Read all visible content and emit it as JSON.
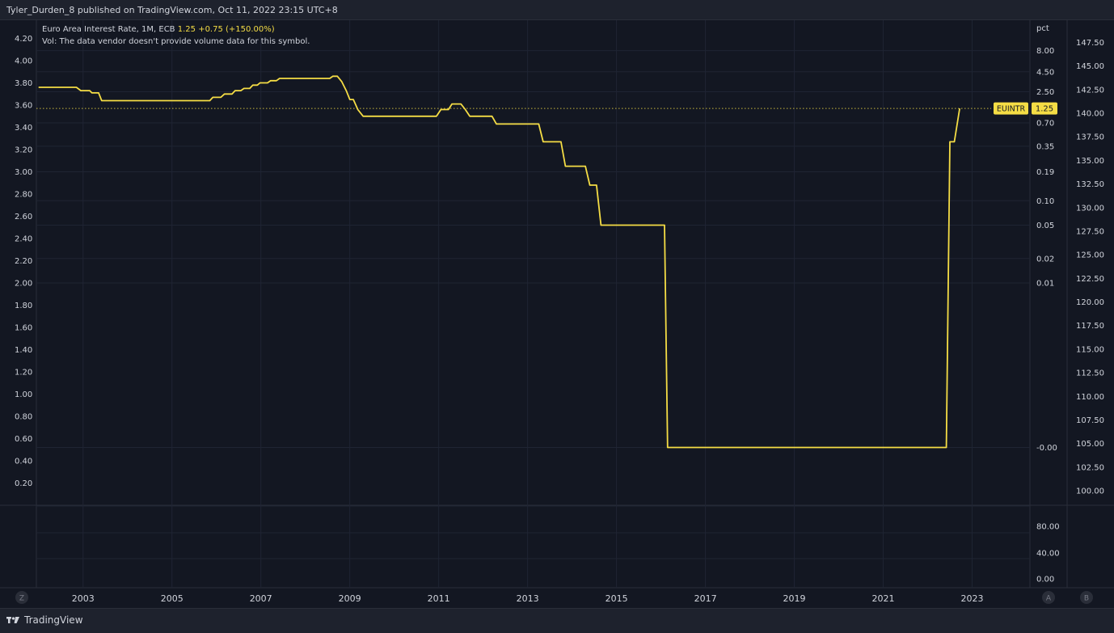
{
  "header": {
    "publish_text": "Tyler_Durden_8 published on TradingView.com, Oct 11, 2022 23:15 UTC+8"
  },
  "legend": {
    "series_label": "Euro Area Interest Rate, 1M, ECB",
    "last_value": "1.25",
    "change": "+0.75 (+150.00%)",
    "vol_note": "Vol: The data vendor doesn't provide volume data for this symbol."
  },
  "footer": {
    "brand": "TradingView"
  },
  "buttons": {
    "z": "Z",
    "a": "A",
    "b": "B"
  },
  "colors": {
    "line": "#f5dd45",
    "background": "#131722",
    "grid": "#1f2433",
    "text": "#d1d4dc"
  },
  "chart_data": {
    "type": "line",
    "series": [
      {
        "name": "EUINTR",
        "last_label": "1.25",
        "points": [
          [
            2002.0,
            3.76
          ],
          [
            2002.85,
            3.76
          ],
          [
            2002.95,
            3.73
          ],
          [
            2003.15,
            3.73
          ],
          [
            2003.2,
            3.71
          ],
          [
            2003.35,
            3.71
          ],
          [
            2003.42,
            3.64
          ],
          [
            2005.85,
            3.64
          ],
          [
            2005.92,
            3.67
          ],
          [
            2006.1,
            3.67
          ],
          [
            2006.18,
            3.7
          ],
          [
            2006.35,
            3.7
          ],
          [
            2006.42,
            3.73
          ],
          [
            2006.55,
            3.73
          ],
          [
            2006.62,
            3.75
          ],
          [
            2006.75,
            3.75
          ],
          [
            2006.82,
            3.78
          ],
          [
            2006.92,
            3.78
          ],
          [
            2006.98,
            3.8
          ],
          [
            2007.15,
            3.8
          ],
          [
            2007.22,
            3.82
          ],
          [
            2007.35,
            3.82
          ],
          [
            2007.42,
            3.84
          ],
          [
            2008.55,
            3.84
          ],
          [
            2008.62,
            3.86
          ],
          [
            2008.72,
            3.86
          ],
          [
            2008.82,
            3.81
          ],
          [
            2008.92,
            3.73
          ],
          [
            2009.0,
            3.65
          ],
          [
            2009.08,
            3.65
          ],
          [
            2009.18,
            3.56
          ],
          [
            2009.3,
            3.5
          ],
          [
            2010.95,
            3.5
          ],
          [
            2011.05,
            3.56
          ],
          [
            2011.22,
            3.56
          ],
          [
            2011.3,
            3.61
          ],
          [
            2011.5,
            3.61
          ],
          [
            2011.6,
            3.56
          ],
          [
            2011.7,
            3.5
          ],
          [
            2012.2,
            3.5
          ],
          [
            2012.3,
            3.43
          ],
          [
            2013.25,
            3.43
          ],
          [
            2013.35,
            3.27
          ],
          [
            2013.75,
            3.27
          ],
          [
            2013.85,
            3.05
          ],
          [
            2014.3,
            3.05
          ],
          [
            2014.4,
            2.88
          ],
          [
            2014.55,
            2.88
          ],
          [
            2014.65,
            2.52
          ],
          [
            2016.08,
            2.52
          ],
          [
            2016.15,
            0.52
          ],
          [
            2022.42,
            0.52
          ],
          [
            2022.5,
            3.27
          ],
          [
            2022.6,
            3.27
          ],
          [
            2022.72,
            3.57
          ]
        ]
      }
    ],
    "x_ticks": [
      "2003",
      "2005",
      "2007",
      "2009",
      "2011",
      "2013",
      "2015",
      "2017",
      "2019",
      "2021",
      "2023"
    ],
    "x_tick_values": [
      2003,
      2005,
      2007,
      2009,
      2011,
      2013,
      2015,
      2017,
      2019,
      2021,
      2023
    ],
    "xlim": [
      2001.95,
      2024.3
    ],
    "left_axis": {
      "ticks": [
        "4.20",
        "4.00",
        "3.80",
        "3.60",
        "3.40",
        "3.20",
        "3.00",
        "2.80",
        "2.60",
        "2.40",
        "2.20",
        "2.00",
        "1.80",
        "1.60",
        "1.40",
        "1.20",
        "1.00",
        "0.80",
        "0.60",
        "0.40",
        "0.20"
      ],
      "ylim": [
        0.2,
        4.2
      ]
    },
    "pct_axis": {
      "title": "pct",
      "ticks": [
        "8.00",
        "4.50",
        "2.50",
        "0.70",
        "0.35",
        "0.19",
        "0.10",
        "0.05",
        "0.02",
        "0.01",
        "-0.00"
      ],
      "tick_at": [
        4.09,
        3.9,
        3.72,
        3.44,
        3.23,
        3.0,
        2.74,
        2.52,
        2.22,
        2.0,
        0.52
      ]
    },
    "right_axis": {
      "ticks": [
        "147.50",
        "145.00",
        "142.50",
        "140.00",
        "137.50",
        "135.00",
        "132.50",
        "130.00",
        "127.50",
        "125.00",
        "122.50",
        "120.00",
        "117.50",
        "115.00",
        "112.50",
        "110.00",
        "107.50",
        "105.00",
        "102.50",
        "100.00"
      ],
      "ylim": [
        100.0,
        147.5
      ]
    },
    "volume_axis": {
      "ticks": [
        "80.00",
        "40.00",
        "0.00"
      ]
    },
    "reference_line": 3.57,
    "grid": true
  }
}
